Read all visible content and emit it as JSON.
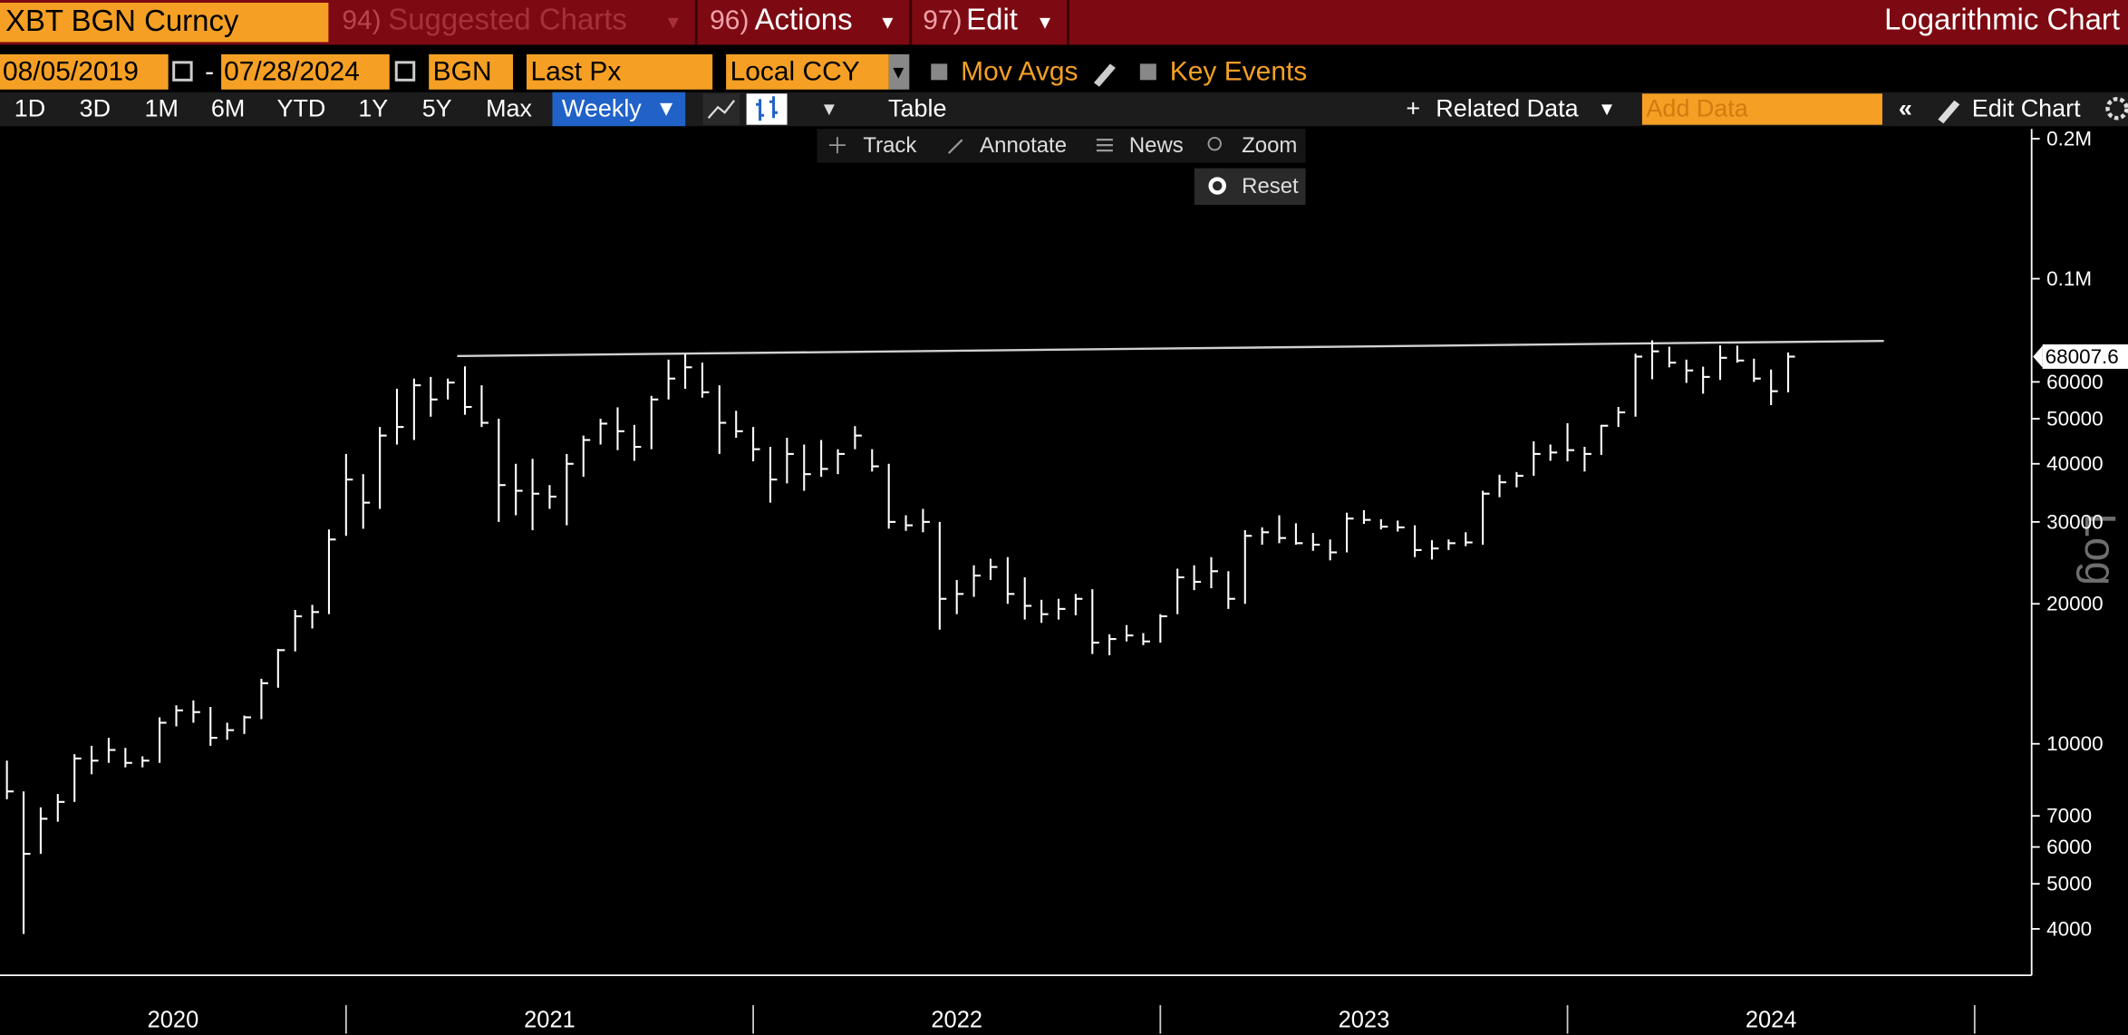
{
  "toolbar": {
    "security": "XBT BGN Curncy",
    "menus": [
      {
        "code": "94)",
        "label": "Suggested Charts"
      },
      {
        "code": "96)",
        "label": "Actions"
      },
      {
        "code": "97)",
        "label": "Edit"
      }
    ],
    "chart_mode": "Logarithmic Chart",
    "start_date": "08/05/2019",
    "date_separator": "-",
    "end_date": "07/28/2024",
    "source": "BGN",
    "field": "Last Px",
    "currency": "Local CCY",
    "options": [
      "Mov Avgs",
      "Key Events"
    ],
    "periods": [
      "1D",
      "3D",
      "1M",
      "6M",
      "YTD",
      "1Y",
      "5Y",
      "Max"
    ],
    "frequency": "Weekly",
    "table": "Table",
    "related": "Related Data",
    "add_data": "Add Data",
    "edit_chart": "Edit Chart",
    "tools": [
      "Track",
      "Annotate",
      "News",
      "Zoom"
    ],
    "reset": "Reset"
  },
  "chart_data": {
    "type": "ohlc",
    "color": "#ffffff",
    "log_scale": true,
    "y_axis_label": "Log",
    "x": [
      2020.167,
      2020.208,
      2020.25,
      2020.292,
      2020.333,
      2020.375,
      2020.417,
      2020.458,
      2020.5,
      2020.542,
      2020.583,
      2020.625,
      2020.667,
      2020.708,
      2020.75,
      2020.792,
      2020.833,
      2020.875,
      2020.917,
      2020.958,
      2021.0,
      2021.042,
      2021.083,
      2021.125,
      2021.167,
      2021.208,
      2021.25,
      2021.292,
      2021.333,
      2021.375,
      2021.417,
      2021.458,
      2021.5,
      2021.542,
      2021.583,
      2021.625,
      2021.667,
      2021.708,
      2021.75,
      2021.792,
      2021.833,
      2021.875,
      2021.917,
      2021.958,
      2022.0,
      2022.042,
      2022.083,
      2022.125,
      2022.167,
      2022.208,
      2022.25,
      2022.292,
      2022.333,
      2022.375,
      2022.417,
      2022.458,
      2022.5,
      2022.542,
      2022.583,
      2022.625,
      2022.667,
      2022.708,
      2022.75,
      2022.792,
      2022.833,
      2022.875,
      2022.917,
      2022.958,
      2023.0,
      2023.042,
      2023.083,
      2023.125,
      2023.167,
      2023.208,
      2023.25,
      2023.292,
      2023.333,
      2023.375,
      2023.417,
      2023.458,
      2023.5,
      2023.542,
      2023.583,
      2023.625,
      2023.667,
      2023.708,
      2023.75,
      2023.792,
      2023.833,
      2023.875,
      2023.917,
      2023.958,
      2024.0,
      2024.042,
      2024.083,
      2024.125,
      2024.167,
      2024.208,
      2024.25,
      2024.292,
      2024.333,
      2024.375,
      2024.417,
      2024.458,
      2024.5,
      2024.542
    ],
    "high": [
      9200,
      7900,
      7300,
      7800,
      9500,
      9900,
      10300,
      9800,
      9400,
      11400,
      12100,
      12400,
      12000,
      11100,
      11500,
      13800,
      16000,
      19400,
      19900,
      28900,
      42000,
      38000,
      48000,
      58000,
      61000,
      61500,
      61000,
      64800,
      59000,
      50000,
      40000,
      41000,
      36000,
      42000,
      46000,
      50000,
      52900,
      48500,
      56000,
      67000,
      68800,
      66000,
      59000,
      52000,
      48000,
      43500,
      45500,
      44000,
      45000,
      43000,
      48200,
      43000,
      40000,
      31000,
      32000,
      30000,
      22500,
      24200,
      25000,
      25200,
      22800,
      20400,
      20500,
      21000,
      21500,
      17200,
      18000,
      17300,
      19000,
      23800,
      24200,
      25200,
      23500,
      28800,
      29200,
      31000,
      29800,
      28400,
      27500,
      31400,
      31800,
      30400,
      30200,
      29500,
      27400,
      27500,
      28500,
      35000,
      37900,
      38400,
      44700,
      44000,
      48900,
      43500,
      48500,
      53000,
      69000,
      73700,
      71400,
      67000,
      64700,
      71900,
      71800,
      67300,
      63800,
      69400
    ],
    "low": [
      7600,
      3900,
      5800,
      6800,
      7500,
      8600,
      9100,
      8900,
      8900,
      9100,
      10900,
      11100,
      9900,
      10200,
      10500,
      11300,
      13200,
      15800,
      17700,
      19000,
      28000,
      29000,
      32000,
      44000,
      45000,
      50500,
      55000,
      51000,
      48000,
      30000,
      31000,
      28800,
      32000,
      29500,
      37500,
      44000,
      42800,
      40600,
      43000,
      55000,
      58000,
      55500,
      42000,
      45500,
      40500,
      33000,
      36300,
      35000,
      37500,
      38000,
      43000,
      38500,
      29000,
      28700,
      28500,
      17600,
      19000,
      20700,
      22500,
      20000,
      18500,
      18200,
      18500,
      18900,
      15600,
      15500,
      16600,
      16300,
      16500,
      19000,
      21400,
      21600,
      19500,
      20000,
      26800,
      27000,
      26800,
      26000,
      24800,
      25800,
      29700,
      28900,
      28600,
      25200,
      24900,
      26100,
      26600,
      26800,
      33900,
      35600,
      37700,
      40600,
      40500,
      38500,
      41800,
      48000,
      50500,
      60800,
      64500,
      59700,
      56600,
      60600,
      66000,
      60000,
      53500,
      57000
    ],
    "close": [
      7900,
      5800,
      6900,
      7500,
      9300,
      9200,
      9700,
      9100,
      9200,
      11100,
      11800,
      11700,
      10300,
      10700,
      11400,
      13500,
      15900,
      18800,
      19200,
      27500,
      37000,
      33000,
      46000,
      48000,
      59000,
      55000,
      59800,
      53000,
      49000,
      36000,
      35000,
      34500,
      34000,
      40000,
      45000,
      48800,
      47000,
      43500,
      55000,
      61000,
      64500,
      57000,
      49000,
      47000,
      43000,
      37000,
      42000,
      38000,
      39000,
      42000,
      46000,
      39500,
      30000,
      29500,
      30000,
      20500,
      21000,
      23000,
      24000,
      21000,
      19800,
      19000,
      19500,
      20500,
      16500,
      16800,
      17100,
      16600,
      18800,
      22800,
      22300,
      23500,
      20500,
      28000,
      28500,
      27700,
      27000,
      26800,
      25800,
      30500,
      30300,
      29300,
      29200,
      26100,
      26300,
      27000,
      27100,
      34500,
      36500,
      37700,
      42000,
      42300,
      42800,
      42000,
      48300,
      51600,
      68000,
      69800,
      66000,
      63500,
      61500,
      67600,
      66700,
      61000,
      57300,
      68000
    ],
    "xlim": [
      2020.15,
      2025.14
    ],
    "xticks": [
      2020,
      2021,
      2022,
      2023,
      2024,
      {
        "value": 2025,
        "label": null
      }
    ],
    "ylim": [
      3200,
      210000
    ],
    "yticks": [
      4000,
      5000,
      6000,
      7000,
      10000,
      20000,
      30000,
      40000,
      50000,
      60000,
      {
        "value": 100000,
        "label": "0.1M"
      },
      {
        "value": 200000,
        "label": "0.2M"
      }
    ],
    "last_price": 68007.6,
    "trendline": {
      "x": [
        2021.273,
        2024.777
      ],
      "y": [
        68200,
        73500
      ],
      "color": "#d0d0d0"
    }
  }
}
